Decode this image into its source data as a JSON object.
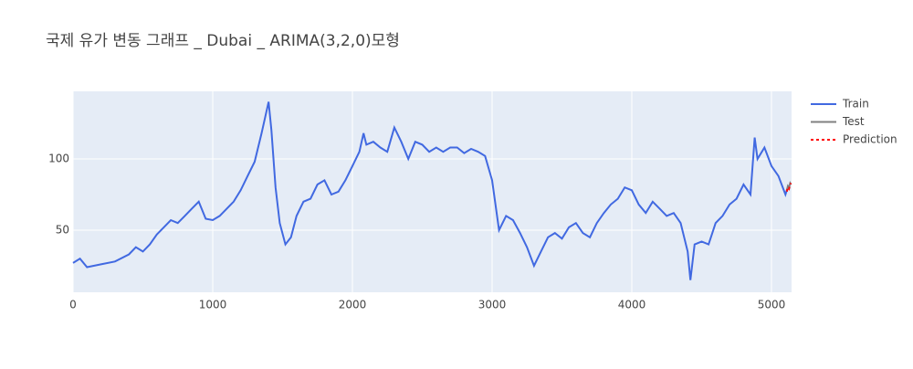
{
  "chart_data": {
    "type": "line",
    "title": "국제 유가 변동 그래프 _ Dubai _ ARIMA(3,2,0)모형",
    "xlim": [
      0,
      5144
    ],
    "ylim": [
      6.4,
      147.4
    ],
    "xticks": [
      0,
      1000,
      2000,
      3000,
      4000,
      5000
    ],
    "yticks": [
      50,
      100
    ],
    "grid": true,
    "legend_position": "right",
    "series": [
      {
        "name": "Train",
        "color": "#4169e1",
        "dash": "solid",
        "x": [
          0,
          50,
          100,
          200,
          300,
          400,
          450,
          500,
          550,
          600,
          650,
          700,
          750,
          800,
          850,
          900,
          950,
          1000,
          1050,
          1100,
          1150,
          1200,
          1250,
          1300,
          1350,
          1400,
          1420,
          1450,
          1480,
          1520,
          1560,
          1600,
          1650,
          1700,
          1750,
          1800,
          1850,
          1900,
          1950,
          2000,
          2050,
          2080,
          2100,
          2150,
          2200,
          2250,
          2300,
          2350,
          2400,
          2450,
          2500,
          2550,
          2600,
          2650,
          2700,
          2750,
          2800,
          2850,
          2900,
          2950,
          3000,
          3050,
          3100,
          3150,
          3200,
          3250,
          3300,
          3350,
          3400,
          3450,
          3500,
          3550,
          3600,
          3650,
          3700,
          3750,
          3800,
          3850,
          3900,
          3950,
          4000,
          4050,
          4100,
          4150,
          4200,
          4250,
          4300,
          4350,
          4400,
          4420,
          4450,
          4500,
          4550,
          4600,
          4650,
          4700,
          4750,
          4800,
          4850,
          4880,
          4900,
          4950,
          5000,
          5050,
          5100,
          5110
        ],
        "values": [
          27,
          30,
          24,
          26,
          28,
          33,
          38,
          35,
          40,
          47,
          52,
          57,
          55,
          60,
          65,
          70,
          58,
          57,
          60,
          65,
          70,
          78,
          88,
          98,
          118,
          140,
          120,
          80,
          55,
          40,
          45,
          60,
          70,
          72,
          82,
          85,
          75,
          77,
          85,
          95,
          105,
          118,
          110,
          112,
          108,
          105,
          122,
          112,
          100,
          112,
          110,
          105,
          108,
          105,
          108,
          108,
          104,
          107,
          105,
          102,
          85,
          50,
          60,
          57,
          48,
          38,
          25,
          35,
          45,
          48,
          44,
          52,
          55,
          48,
          45,
          55,
          62,
          68,
          72,
          80,
          78,
          68,
          62,
          70,
          65,
          60,
          62,
          55,
          35,
          15,
          40,
          42,
          40,
          55,
          60,
          68,
          72,
          82,
          75,
          115,
          100,
          108,
          95,
          88,
          75,
          78
        ]
      },
      {
        "name": "Test",
        "color": "#808080",
        "dash": "solid",
        "x": [
          5110,
          5118,
          5126,
          5134,
          5140
        ],
        "values": [
          78,
          81,
          80,
          83,
          82
        ]
      },
      {
        "name": "Prediction",
        "color": "#ff0000",
        "dash": "dot",
        "x": [
          5110,
          5118,
          5126,
          5134,
          5140
        ],
        "values": [
          77,
          80,
          79,
          82,
          83
        ]
      }
    ]
  }
}
